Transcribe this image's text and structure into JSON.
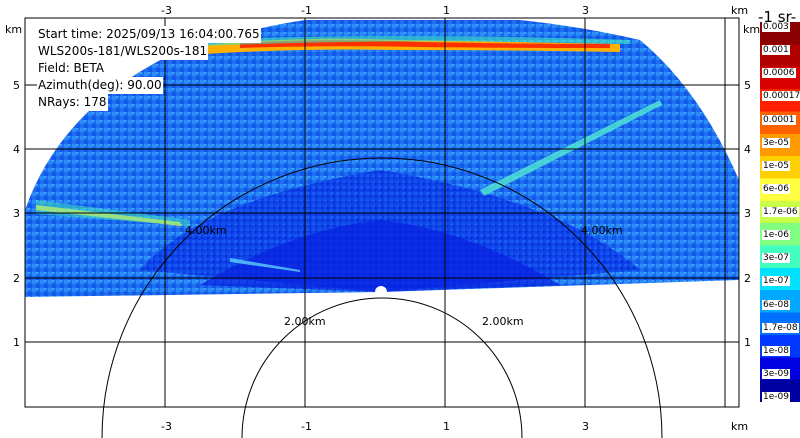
{
  "info": {
    "start_time": "Start time: 2025/09/13 16:04:00.765",
    "instrument": "WLS200s-181/WLS200s-181",
    "field": "Field: BETA",
    "azimuth": "Azimuth(deg): 90.00",
    "nrays": "NRays: 178"
  },
  "axes": {
    "unit": "km",
    "x_ticks": [
      "-3",
      "-1",
      "1",
      "3"
    ],
    "y_ticks": [
      "1",
      "2",
      "3",
      "4",
      "5"
    ],
    "range_rings": [
      "2.00km",
      "2.00km",
      "4.00km",
      "4.00km"
    ]
  },
  "colorbar": {
    "title": "-1 sr-",
    "labels": [
      "0.003",
      "0.001",
      "0.0006",
      "0.00017",
      "0.0001",
      "3e-05",
      "1e-05",
      "6e-06",
      "1.7e-06",
      "1e-06",
      "3e-07",
      "1e-07",
      "6e-08",
      "1.7e-08",
      "1e-08",
      "3e-09",
      "1e-09"
    ],
    "colors": [
      "#8b0000",
      "#b00000",
      "#d80000",
      "#ff2000",
      "#ff6000",
      "#ff9a00",
      "#ffd000",
      "#ffff40",
      "#c8ff48",
      "#80ff80",
      "#40ffc0",
      "#00e0ff",
      "#00a8ff",
      "#0070ff",
      "#0038ff",
      "#0000e0",
      "#0000a0"
    ]
  }
}
